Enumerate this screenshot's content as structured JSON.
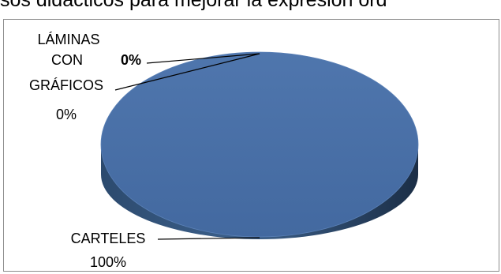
{
  "caption_fragment": "sos didácticos  para mejorar la expresión ord",
  "chart_data": {
    "type": "pie",
    "style": "3d",
    "title": "",
    "slices": [
      {
        "name": "CARTELES",
        "value": 100,
        "label": "100%"
      },
      {
        "name": "LÁMINAS CON GRÁFICOS",
        "value": 0,
        "label": "0%",
        "name_lines": [
          "LÁMINAS",
          "CON",
          "GRÁFICOS"
        ]
      },
      {
        "name": "",
        "value": 0,
        "label": "0%"
      }
    ],
    "colors": {
      "slice": "#4a6fa5",
      "side_dark": "#1f3550",
      "leader": "#000000"
    }
  }
}
